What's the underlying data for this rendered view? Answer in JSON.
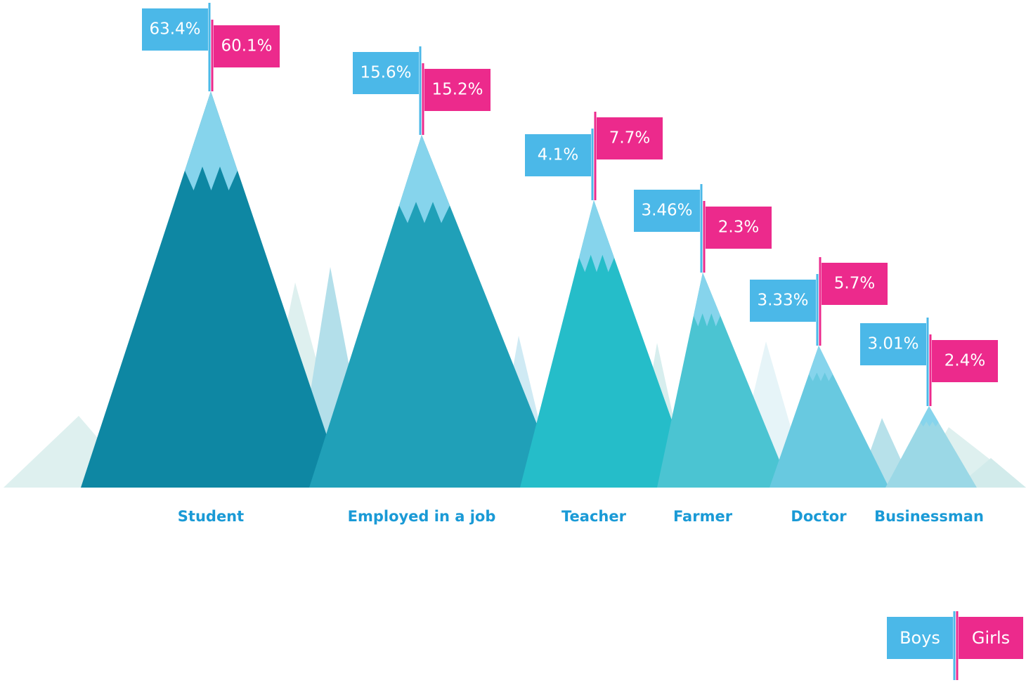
{
  "chart_data": {
    "type": "mountain",
    "categories": [
      "Student",
      "Employed in a job",
      "Teacher",
      "Farmer",
      "Doctor",
      "Businessman"
    ],
    "series": [
      {
        "name": "Boys",
        "color": "#4bb8e8",
        "values": [
          63.4,
          15.6,
          4.1,
          3.46,
          3.33,
          3.01
        ],
        "value_labels": [
          "63.4%",
          "15.6%",
          "4.1%",
          "3.46%",
          "3.33%",
          "3.01%"
        ]
      },
      {
        "name": "Girls",
        "color": "#ec2a8c",
        "values": [
          60.1,
          15.2,
          7.7,
          2.3,
          5.7,
          2.4
        ],
        "value_labels": [
          "60.1%",
          "15.2%",
          "7.7%",
          "2.3%",
          "5.7%",
          "2.4%"
        ]
      }
    ]
  }
}
